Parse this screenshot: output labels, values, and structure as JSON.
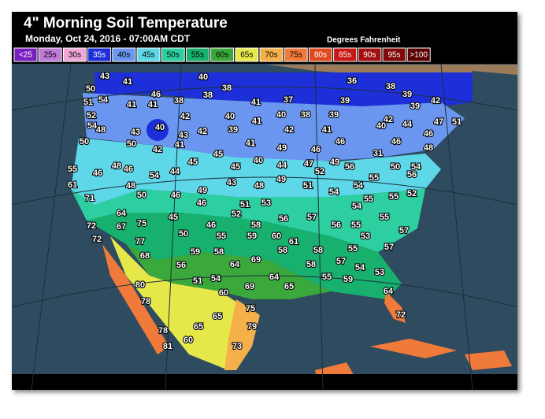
{
  "header": {
    "title": "4\" Morning Soil Temperature",
    "subtitle": "Monday, Oct 24, 2016 - 07:00AM CDT",
    "units": "Degrees Fahrenheit"
  },
  "legend": [
    {
      "label": "<25",
      "color": "#7a1fbf"
    },
    {
      "label": "25s",
      "color": "#c07ad8"
    },
    {
      "label": "30s",
      "color": "#f0a8d8"
    },
    {
      "label": "35s",
      "color": "#1d2fd8"
    },
    {
      "label": "40s",
      "color": "#6a96f0"
    },
    {
      "label": "45s",
      "color": "#5ed8e8"
    },
    {
      "label": "50s",
      "color": "#2dcfa0"
    },
    {
      "label": "55s",
      "color": "#17b06e"
    },
    {
      "label": "60s",
      "color": "#3aa83a"
    },
    {
      "label": "65s",
      "color": "#e6e84a"
    },
    {
      "label": "70s",
      "color": "#f6b04a"
    },
    {
      "label": "75s",
      "color": "#f07a3a"
    },
    {
      "label": "80s",
      "color": "#e04a20"
    },
    {
      "label": "85s",
      "color": "#c81818"
    },
    {
      "label": "90s",
      "color": "#a01010"
    },
    {
      "label": "95s",
      "color": "#800808"
    },
    {
      "label": ">100",
      "color": "#5a0000"
    }
  ],
  "readings": [
    43,
    41,
    40,
    38,
    36,
    38,
    39,
    50,
    54,
    51,
    41,
    46,
    38,
    38,
    41,
    37,
    39,
    42,
    39,
    52,
    41,
    42,
    40,
    41,
    40,
    38,
    39,
    42,
    44,
    47,
    51,
    54,
    48,
    43,
    40,
    43,
    42,
    39,
    42,
    41,
    40,
    46,
    50,
    50,
    42,
    41,
    41,
    49,
    46,
    46,
    31,
    46,
    48,
    48,
    46,
    45,
    45,
    45,
    40,
    44,
    47,
    52,
    49,
    56,
    50,
    54,
    55,
    46,
    54,
    44,
    43,
    48,
    49,
    51,
    54,
    54,
    55,
    56,
    61,
    71,
    48,
    50,
    46,
    49,
    46,
    51,
    53,
    52,
    55,
    52,
    54,
    55,
    64,
    45,
    56,
    57,
    55,
    67,
    72,
    46,
    58,
    55,
    56,
    75,
    72,
    77,
    50,
    55,
    59,
    60,
    61,
    53,
    57,
    68,
    59,
    58,
    64,
    69,
    58,
    58,
    55,
    57,
    56,
    57,
    54,
    53,
    58,
    80,
    51,
    54,
    69,
    64,
    65,
    55,
    59,
    64,
    78,
    60,
    75,
    72,
    78,
    65,
    65,
    79,
    81,
    60,
    73
  ]
}
